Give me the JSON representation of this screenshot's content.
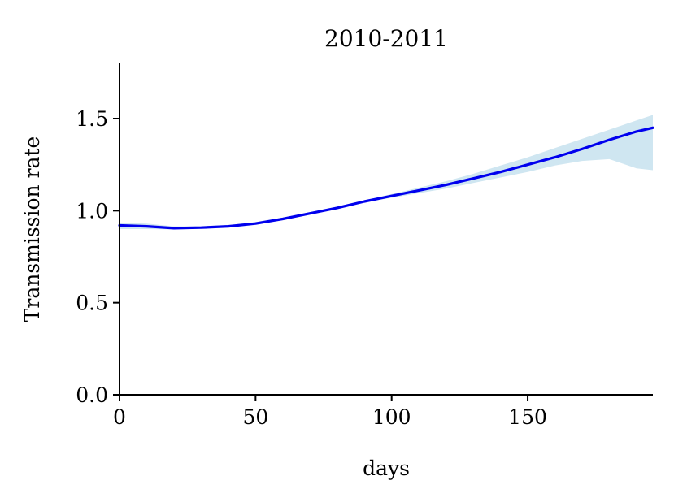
{
  "chart_data": {
    "type": "line",
    "title": "2010-2011",
    "xlabel": "days",
    "ylabel": "Transmission rate",
    "xlim": [
      0,
      196
    ],
    "ylim": [
      0,
      1.8
    ],
    "xticks": [
      0,
      50,
      100,
      150
    ],
    "xtick_labels": [
      "0",
      "50",
      "100",
      "150"
    ],
    "yticks": [
      0.0,
      0.5,
      1.0,
      1.5
    ],
    "ytick_labels": [
      "0.0",
      "0.5",
      "1.0",
      "1.5"
    ],
    "grid": false,
    "colors": {
      "line": "#0000ee",
      "band": "#cfe6f1"
    },
    "series": [
      {
        "x": [
          0,
          10,
          20,
          30,
          40,
          50,
          60,
          70,
          80,
          90,
          100,
          110,
          120,
          130,
          140,
          150,
          160,
          170,
          180,
          190,
          196
        ],
        "y": [
          0.92,
          0.915,
          0.905,
          0.908,
          0.915,
          0.93,
          0.955,
          0.985,
          1.015,
          1.05,
          1.08,
          1.11,
          1.14,
          1.175,
          1.21,
          1.25,
          1.29,
          1.335,
          1.385,
          1.43,
          1.45
        ],
        "lower": [
          0.9,
          0.9,
          0.898,
          0.902,
          0.91,
          0.925,
          0.95,
          0.98,
          1.01,
          1.045,
          1.07,
          1.095,
          1.12,
          1.15,
          1.18,
          1.21,
          1.245,
          1.27,
          1.28,
          1.23,
          1.22
        ],
        "upper": [
          0.935,
          0.93,
          0.915,
          0.915,
          0.922,
          0.938,
          0.962,
          0.992,
          1.022,
          1.056,
          1.09,
          1.125,
          1.16,
          1.2,
          1.245,
          1.29,
          1.34,
          1.39,
          1.44,
          1.49,
          1.52
        ]
      }
    ]
  }
}
